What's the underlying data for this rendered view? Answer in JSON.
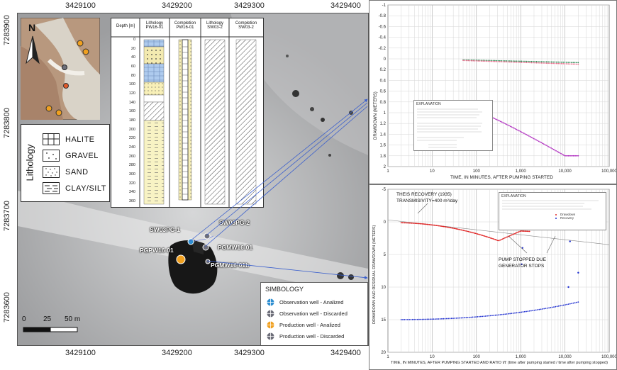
{
  "map": {
    "x_ticks": [
      "3429100",
      "3429200",
      "3429300",
      "3429400"
    ],
    "y_ticks": [
      "7283900",
      "7283800",
      "7283700",
      "7283600"
    ],
    "north_label": "N",
    "scale_bar": {
      "labels": [
        "0",
        "25",
        "50 m"
      ]
    },
    "well_labels": {
      "sw03pg1": "SW03PG-1",
      "sw03pg2": "SW03PG-2",
      "pgmw1601": "PGMW16-01",
      "pgpw1601": "PGPW16-01",
      "pgmw1601b": "PGMW16-01b"
    },
    "lithology_legend": {
      "title": "Lithology",
      "items": [
        {
          "label": "HALITE",
          "pattern": "grid"
        },
        {
          "label": "GRAVEL",
          "pattern": "dots-sparse"
        },
        {
          "label": "SAND",
          "pattern": "dots-dense"
        },
        {
          "label": "CLAY/SILT",
          "pattern": "dashes"
        }
      ]
    },
    "simbology": {
      "title": "SIMBOLOGY",
      "items": [
        {
          "label": "Observation well - Analized",
          "color": "#2f8fd1"
        },
        {
          "label": "Observation well - Discarded",
          "color": "#6e6f7a"
        },
        {
          "label": "Production well - Analized",
          "color": "#f0a020"
        },
        {
          "label": "Production well - Discarded",
          "color": "#6e6f7a"
        }
      ]
    }
  },
  "well_log": {
    "headers": [
      "Depth [m]",
      "Lithology PW16-01",
      "Completion PW16-01",
      "Lithology SW03-2",
      "Completion SW03-2"
    ],
    "depths": [
      "0",
      "20",
      "40",
      "60",
      "80",
      "100",
      "120",
      "140",
      "160",
      "180",
      "200",
      "220",
      "240",
      "260",
      "280",
      "300",
      "320",
      "340",
      "360"
    ]
  },
  "plots": {
    "top": {
      "y_axis_label": "DRAWDOWN (METERS)",
      "x_axis_label": "TIME, IN MINUTES, AFTER PUMPING STARTED",
      "y_ticks": [
        "-1",
        "-0.8",
        "-0.6",
        "-0.4",
        "-0.2",
        "0",
        "0.2",
        "0.4",
        "0.6",
        "0.8",
        "1",
        "1.2",
        "1.4",
        "1.6",
        "1.8",
        "2"
      ],
      "x_ticks": [
        "1",
        "10",
        "100",
        "1,000",
        "10,000",
        "100,000"
      ],
      "info_title": "EXPLANATION"
    },
    "bottom": {
      "y_axis_label": "DRAWDOWN AND RESIDUAL DRAWDOWN (METERS)",
      "x_axis_label": "TIME, IN MINUTES, AFTER PUMPING STARTED AND RATIO t/t' (time after pumping started / time after pumping stopped)",
      "y_ticks": [
        "-5",
        "0",
        "5",
        "10",
        "15",
        "20"
      ],
      "x_ticks": [
        "1",
        "10",
        "100",
        "1,000",
        "10,000",
        "100,000"
      ],
      "annotation_theis": "THEIS RECOVERY (1935)",
      "annotation_trans": "TRANSMISIVITY=400 m²/day",
      "annotation_pump1": "PUMP STOPPED DUE",
      "annotation_pump2": "GENERATOR STOPS",
      "info_title": "EXPLANATION",
      "legend": [
        "Drawdown",
        "Recovery"
      ]
    }
  },
  "colors": {
    "obs_green": "#2e8b57",
    "obs_pink": "#e86a8a",
    "pumped_purple": "#b030c0",
    "drawdown_red": "#e02020",
    "recovery_blue": "#1f2fd0"
  }
}
